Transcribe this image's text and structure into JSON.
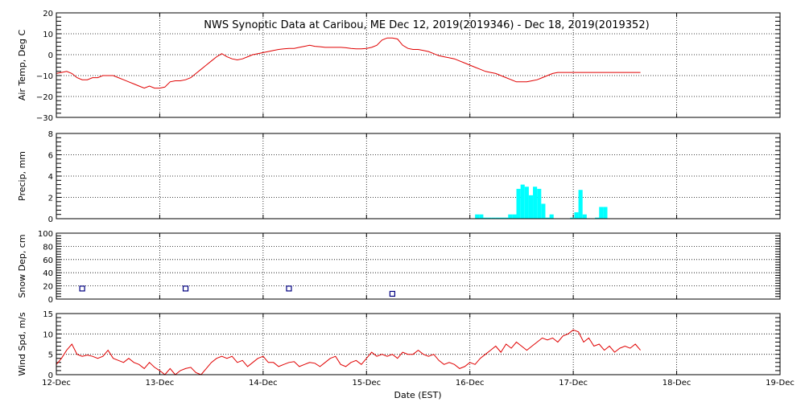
{
  "title": "NWS Synoptic Data at Caribou, ME   Dec 12, 2019(2019346) - Dec 18, 2019(2019352)",
  "xlabel": "Date (EST)",
  "colors": {
    "temp": "#e00000",
    "precip": "#00ffff",
    "snow": "#000080",
    "wind": "#e00000"
  },
  "chart_data": [
    {
      "type": "line",
      "ylabel": "Air Temp, Deg C",
      "ylim": [
        -30,
        20
      ],
      "yticks": [
        "20",
        "10",
        "0",
        "−10",
        "−20",
        "−30"
      ],
      "ytick_values": [
        20,
        10,
        0,
        -10,
        -20,
        -30
      ],
      "x_unit": "days since Dec 12",
      "series": [
        {
          "x": [
            0,
            0.05,
            0.1,
            0.15,
            0.2,
            0.25,
            0.3,
            0.35,
            0.4,
            0.45,
            0.5,
            0.55,
            0.6,
            0.65,
            0.7,
            0.75,
            0.8,
            0.85,
            0.9,
            0.95,
            1.0,
            1.05,
            1.1,
            1.15,
            1.2,
            1.25,
            1.3,
            1.35,
            1.4,
            1.45,
            1.5,
            1.55,
            1.6,
            1.65,
            1.7,
            1.75,
            1.8,
            1.85,
            1.9,
            1.95,
            2.0,
            2.05,
            2.1,
            2.15,
            2.2,
            2.25,
            2.3,
            2.35,
            2.4,
            2.45,
            2.5,
            2.55,
            2.6,
            2.65,
            2.7,
            2.75,
            2.8,
            2.85,
            2.9,
            2.95,
            3.0,
            3.05,
            3.1,
            3.15,
            3.2,
            3.25,
            3.3,
            3.35,
            3.4,
            3.45,
            3.5,
            3.55,
            3.6,
            3.65,
            3.7,
            3.75,
            3.8,
            3.85,
            3.9,
            3.95,
            4.0,
            4.05,
            4.1,
            4.15,
            4.2,
            4.25,
            4.3,
            4.35,
            4.4,
            4.45,
            4.5,
            4.55,
            4.6,
            4.65,
            4.7,
            4.75,
            4.8,
            4.85,
            4.9,
            4.95,
            5.0,
            5.05,
            5.1,
            5.15,
            5.2,
            5.25,
            5.3,
            5.35,
            5.4,
            5.45,
            5.5,
            5.55,
            5.6,
            5.65
          ],
          "values": [
            -9,
            -8.5,
            -8,
            -9,
            -11,
            -12,
            -12,
            -11,
            -11,
            -10,
            -10,
            -10,
            -11,
            -12,
            -13,
            -14,
            -15,
            -16,
            -15,
            -16,
            -16,
            -15.5,
            -13,
            -12.5,
            -12.5,
            -12,
            -11,
            -9,
            -7,
            -5,
            -3,
            -1,
            0.5,
            -1,
            -2,
            -2.5,
            -2,
            -1,
            0,
            0.5,
            1,
            1.5,
            2,
            2.5,
            2.8,
            3,
            3,
            3.5,
            4,
            4.5,
            4,
            3.8,
            3.5,
            3.5,
            3.5,
            3.5,
            3.3,
            3,
            2.8,
            2.8,
            3,
            3.5,
            4.5,
            7,
            8,
            8,
            7.5,
            4.5,
            3,
            2.5,
            2.5,
            2,
            1.5,
            0.5,
            -0.5,
            -1,
            -1.5,
            -2,
            -3,
            -4,
            -5,
            -6,
            -7,
            -8,
            -8.5,
            -9,
            -10,
            -11,
            -12,
            -13,
            -13,
            -13,
            -12.5,
            -12,
            -11,
            -10,
            -9,
            -8.5,
            -8.5,
            -8.5,
            -8.5,
            -8.5,
            -8.5,
            -8.5,
            -8.5,
            -8.5,
            -8.5,
            -8.5,
            -8.5,
            -8.5,
            -8.5,
            -8.5,
            -8.5,
            -8.5
          ]
        }
      ]
    },
    {
      "type": "bar",
      "ylabel": "Precip, mm",
      "ylim": [
        0,
        8
      ],
      "yticks": [
        "8",
        "6",
        "4",
        "2",
        "0"
      ],
      "ytick_values": [
        8,
        6,
        4,
        2,
        0
      ],
      "x_unit": "days since Dec 12",
      "bar_width": 0.04,
      "series": [
        {
          "x": [
            4.05,
            4.09,
            4.13,
            4.17,
            4.21,
            4.25,
            4.29,
            4.33,
            4.37,
            4.41,
            4.45,
            4.49,
            4.53,
            4.57,
            4.61,
            4.65,
            4.69,
            4.73,
            4.77,
            4.81,
            4.85,
            4.89,
            4.93,
            4.97,
            5.01,
            5.05,
            5.09,
            5.13,
            5.17,
            5.21,
            5.25,
            5.29
          ],
          "values": [
            0.4,
            0.4,
            0.1,
            0.1,
            0.1,
            0.1,
            0.1,
            0.1,
            0.4,
            0.4,
            2.8,
            3.2,
            3.0,
            2.2,
            3.0,
            2.8,
            1.4,
            0.1,
            0.4,
            0,
            0,
            0,
            0,
            0.1,
            0.6,
            2.7,
            0.4,
            0,
            0,
            0.1,
            1.1,
            1.1
          ]
        }
      ]
    },
    {
      "type": "scatter",
      "ylabel": "Snow Dep, cm",
      "ylim": [
        0,
        100
      ],
      "yticks": [
        "100",
        "80",
        "60",
        "40",
        "20",
        "0"
      ],
      "ytick_values": [
        100,
        80,
        60,
        40,
        20,
        0
      ],
      "x_unit": "days since Dec 12",
      "series": [
        {
          "x": [
            0.25,
            1.25,
            2.25,
            3.25
          ],
          "values": [
            16,
            16,
            16,
            8
          ]
        }
      ]
    },
    {
      "type": "line",
      "ylabel": "Wind Spd, m/s",
      "ylim": [
        0,
        15
      ],
      "yticks": [
        "15",
        "10",
        "5",
        "0"
      ],
      "ytick_values": [
        15,
        10,
        5,
        0
      ],
      "x_unit": "days since Dec 12",
      "series": [
        {
          "x": [
            0,
            0.05,
            0.1,
            0.15,
            0.2,
            0.25,
            0.3,
            0.35,
            0.4,
            0.45,
            0.5,
            0.55,
            0.6,
            0.65,
            0.7,
            0.75,
            0.8,
            0.85,
            0.9,
            0.95,
            1.0,
            1.05,
            1.1,
            1.15,
            1.2,
            1.25,
            1.3,
            1.35,
            1.4,
            1.45,
            1.5,
            1.55,
            1.6,
            1.65,
            1.7,
            1.75,
            1.8,
            1.85,
            1.9,
            1.95,
            2.0,
            2.05,
            2.1,
            2.15,
            2.2,
            2.25,
            2.3,
            2.35,
            2.4,
            2.45,
            2.5,
            2.55,
            2.6,
            2.65,
            2.7,
            2.75,
            2.8,
            2.85,
            2.9,
            2.95,
            3.0,
            3.05,
            3.1,
            3.15,
            3.2,
            3.25,
            3.3,
            3.35,
            3.4,
            3.45,
            3.5,
            3.55,
            3.6,
            3.65,
            3.7,
            3.75,
            3.8,
            3.85,
            3.9,
            3.95,
            4.0,
            4.05,
            4.1,
            4.15,
            4.2,
            4.25,
            4.3,
            4.35,
            4.4,
            4.45,
            4.5,
            4.55,
            4.6,
            4.65,
            4.7,
            4.75,
            4.8,
            4.85,
            4.9,
            4.95,
            5.0,
            5.05,
            5.1,
            5.15,
            5.2,
            5.25,
            5.3,
            5.35,
            5.4,
            5.45,
            5.5,
            5.55,
            5.6,
            5.65
          ],
          "values": [
            2.5,
            4,
            6,
            7.5,
            5,
            4.5,
            4.8,
            4.5,
            4,
            4.5,
            6,
            4,
            3.5,
            3,
            4,
            3,
            2.5,
            1.5,
            3,
            1.8,
            1,
            0,
            1.5,
            0,
            1,
            1.5,
            1.8,
            0.5,
            0,
            1.5,
            3,
            4,
            4.5,
            4,
            4.5,
            3,
            3.5,
            2,
            3,
            4,
            4.5,
            3,
            3,
            2,
            2.5,
            3,
            3.2,
            2,
            2.5,
            3,
            2.8,
            2,
            3,
            4,
            4.5,
            2.5,
            2,
            3,
            3.5,
            2.5,
            4,
            5.5,
            4.5,
            5,
            4.5,
            5,
            4,
            5.5,
            5,
            5,
            6,
            5,
            4.5,
            5,
            3.5,
            2.5,
            3,
            2.5,
            1.5,
            2,
            3,
            2.5,
            4,
            5,
            6,
            7,
            5.5,
            7.5,
            6.5,
            8,
            7,
            6,
            7,
            8,
            9,
            8.5,
            9,
            8,
            9.5,
            10,
            11,
            10.5,
            8,
            9,
            7,
            7.5,
            6,
            7,
            5.5,
            6.5,
            7,
            6.5,
            7.5,
            6
          ]
        }
      ]
    }
  ],
  "xaxis": {
    "range": [
      0,
      7
    ],
    "tick_labels": [
      "12-Dec",
      "13-Dec",
      "14-Dec",
      "15-Dec",
      "16-Dec",
      "17-Dec",
      "18-Dec",
      "19-Dec"
    ]
  }
}
